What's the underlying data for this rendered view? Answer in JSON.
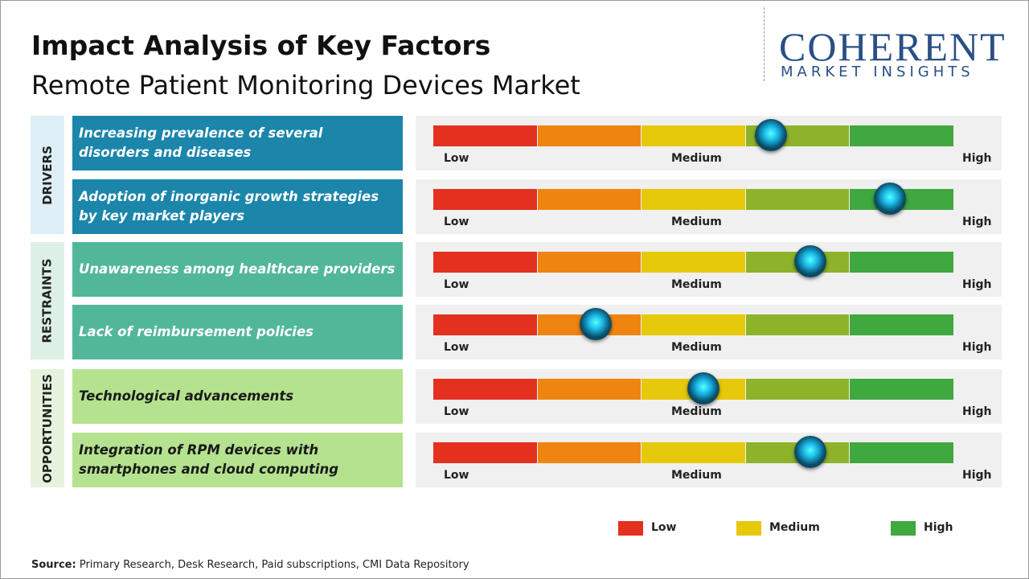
{
  "header": {
    "title": "Impact Analysis of Key Factors",
    "subtitle": "Remote Patient Monitoring Devices Market"
  },
  "logo": {
    "name": "COHERENT",
    "tagline": "MARKET INSIGHTS"
  },
  "scale": {
    "low": "Low",
    "medium": "Medium",
    "high": "High",
    "colors": [
      "#e3301f",
      "#ef8410",
      "#e6c90b",
      "#8eb32a",
      "#3fa83f"
    ]
  },
  "groups": [
    {
      "name": "DRIVERS",
      "color": "#1b85aa",
      "text_color": "#ffffff",
      "label_bg": "#ddeef7",
      "factors": [
        {
          "text": "Increasing prevalence of several disorders and diseases",
          "impact": 3.24
        },
        {
          "text": "Adoption of inorganic growth strategies by key market players",
          "impact": 4.38
        }
      ]
    },
    {
      "name": "RESTRAINTS",
      "color": "#52b799",
      "text_color": "#ffffff",
      "label_bg": "#ddf0e6",
      "factors": [
        {
          "text": "Unawareness among healthcare providers",
          "impact": 3.62
        },
        {
          "text": "Lack of reimbursement policies",
          "impact": 1.56
        }
      ]
    },
    {
      "name": "OPPORTUNITIES",
      "color": "#b5e28e",
      "text_color": "#1a1a1a",
      "label_bg": "#e6f3dc",
      "factors": [
        {
          "text": "Technological advancements",
          "impact": 2.59
        },
        {
          "text": "Integration of RPM devices with smartphones and cloud computing",
          "impact": 3.62
        }
      ]
    }
  ],
  "legend": [
    {
      "label": "Low",
      "color": "#e3301f"
    },
    {
      "label": "Medium",
      "color": "#e6c90b"
    },
    {
      "label": "High",
      "color": "#3fa83f"
    }
  ],
  "source": {
    "label": "Source:",
    "text": "Primary Research, Desk Research, Paid subscriptions, CMI Data Repository"
  }
}
